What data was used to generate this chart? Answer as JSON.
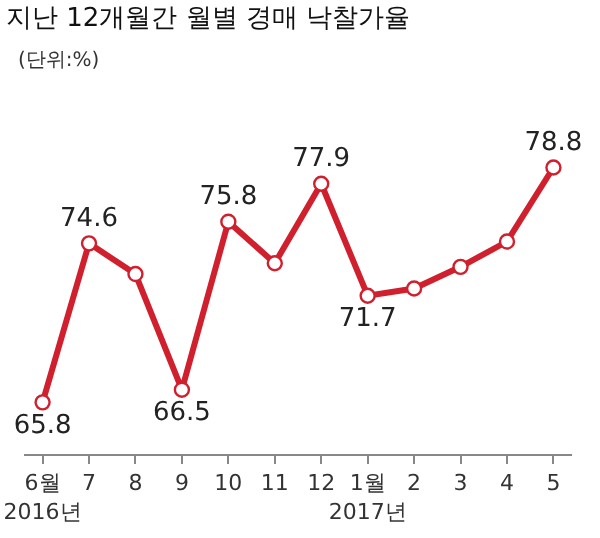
{
  "chart_data": {
    "type": "line",
    "title": "지난 12개월간 월별 경매 낙찰가율",
    "subtitle": "(단위:%)",
    "categories": [
      "6월\n2016년",
      "7",
      "8",
      "9",
      "10",
      "11",
      "12",
      "1월\n2017년",
      "2",
      "3",
      "4",
      "5"
    ],
    "series": [
      {
        "color": "#d0202e",
        "values": [
          65.8,
          74.6,
          72.9,
          66.5,
          75.8,
          73.5,
          77.9,
          71.7,
          72.1,
          73.3,
          74.7,
          78.8
        ],
        "value_labels": [
          "65.8",
          "74.6",
          null,
          "66.5",
          "75.8",
          null,
          "77.9",
          "71.7",
          null,
          null,
          null,
          "78.8"
        ]
      }
    ],
    "marker": "circle",
    "line_style": "solid",
    "grid": false
  }
}
